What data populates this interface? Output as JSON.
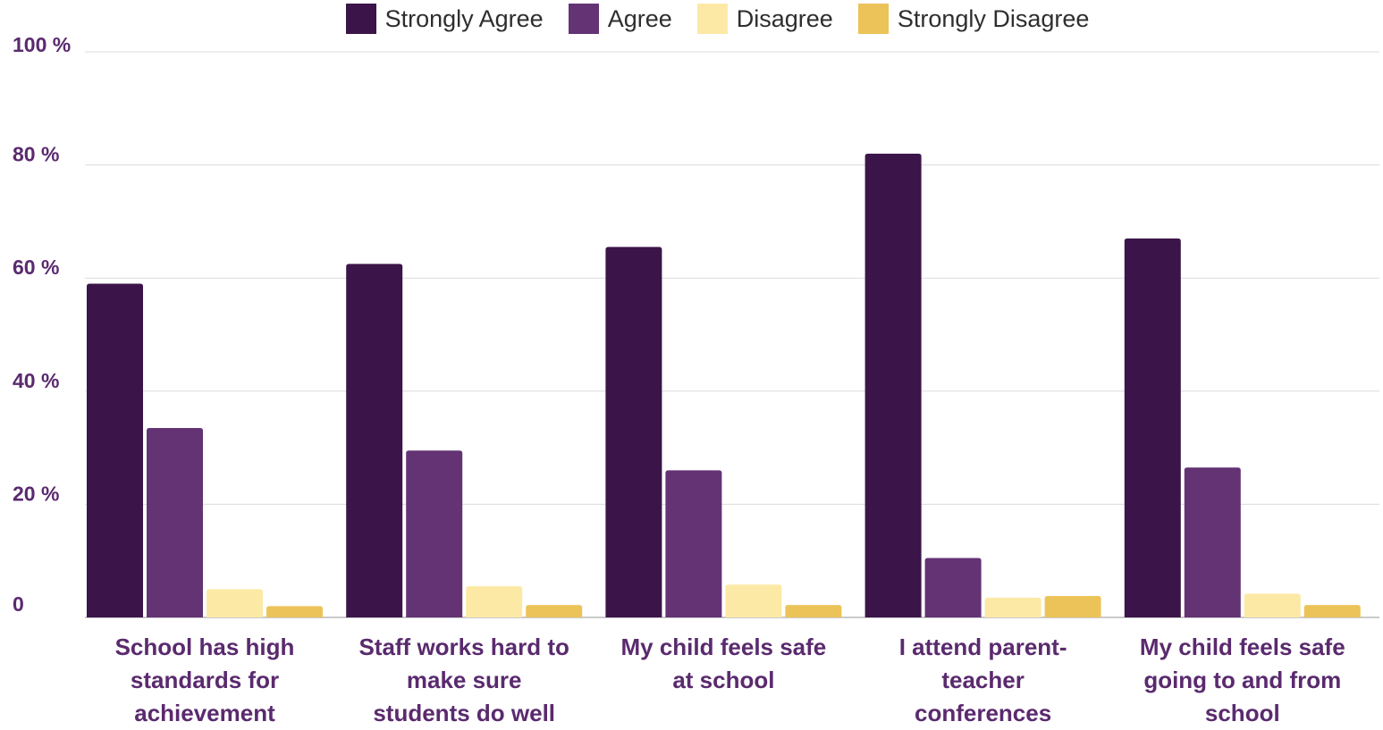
{
  "chart_data": {
    "type": "bar",
    "title": "",
    "xlabel": "",
    "ylabel": "",
    "ylim": [
      0,
      100
    ],
    "yticks": [
      {
        "value": 0,
        "label": "0"
      },
      {
        "value": 20,
        "label": "20 %"
      },
      {
        "value": 40,
        "label": "40 %"
      },
      {
        "value": 60,
        "label": "60 %"
      },
      {
        "value": 80,
        "label": "80 %"
      },
      {
        "value": 100,
        "label": "100 %"
      }
    ],
    "grid": true,
    "legend_position": "top",
    "categories": [
      "School has high standards for achievement",
      "Staff works hard to make sure students do well",
      "My child feels safe at school",
      "I attend parent-teacher conferences",
      "My child feels safe going to and from school"
    ],
    "category_lines": [
      [
        "School has high",
        "standards for",
        "achievement"
      ],
      [
        "Staff works hard to",
        "make sure",
        "students do well"
      ],
      [
        "My child feels safe",
        "at school"
      ],
      [
        "I attend parent-",
        "teacher",
        "conferences"
      ],
      [
        "My child feels safe",
        "going to and from",
        "school"
      ]
    ],
    "series": [
      {
        "name": "Strongly Agree",
        "color": "#3b1549",
        "values": [
          59,
          62.5,
          65.5,
          82,
          67
        ]
      },
      {
        "name": "Agree",
        "color": "#633374",
        "values": [
          33.5,
          29.5,
          26,
          10.5,
          26.5
        ]
      },
      {
        "name": "Disagree",
        "color": "#fde9a6",
        "values": [
          5,
          5.5,
          5.8,
          3.5,
          4.2
        ]
      },
      {
        "name": "Strongly Disagree",
        "color": "#ecc358",
        "values": [
          2,
          2.2,
          2.2,
          3.8,
          2.2
        ]
      }
    ]
  }
}
